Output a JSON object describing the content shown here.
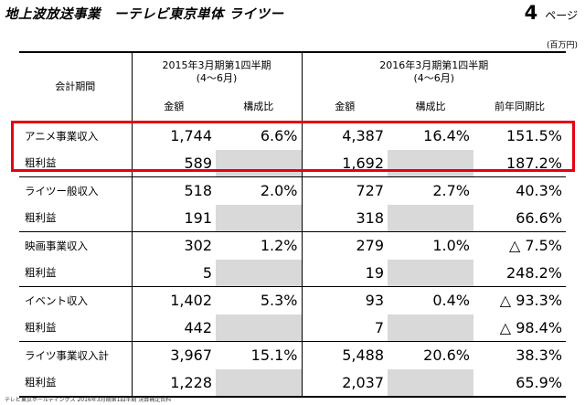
{
  "header": {
    "title": "地上波放送事業　ーテレビ東京単体 ライツー",
    "page_number": "4",
    "page_label": "ページ",
    "unit": "(百万円)"
  },
  "table": {
    "period_label": "会計期間",
    "period1": {
      "line1": "2015年3月期第1四半期",
      "line2": "(4〜6月)"
    },
    "period2": {
      "line1": "2016年3月期第1四半期",
      "line2": "(4〜6月)"
    },
    "col_amount": "金額",
    "col_ratio": "構成比",
    "col_yoy": "前年同期比",
    "rows": [
      {
        "label": "アニメ事業収入",
        "a1": "1,744",
        "r1": "6.6%",
        "a2": "4,387",
        "r2": "16.4%",
        "yoy": "151.5%"
      },
      {
        "label": "粗利益",
        "a1": "589",
        "r1": "",
        "a2": "1,692",
        "r2": "",
        "yoy": "187.2%"
      },
      {
        "label": "ライツー般収入",
        "a1": "518",
        "r1": "2.0%",
        "a2": "727",
        "r2": "2.7%",
        "yoy": "40.3%"
      },
      {
        "label": "粗利益",
        "a1": "191",
        "r1": "",
        "a2": "318",
        "r2": "",
        "yoy": "66.6%"
      },
      {
        "label": "映画事業収入",
        "a1": "302",
        "r1": "1.2%",
        "a2": "279",
        "r2": "1.0%",
        "yoy": "△ 7.5%"
      },
      {
        "label": "粗利益",
        "a1": "5",
        "r1": "",
        "a2": "19",
        "r2": "",
        "yoy": "248.2%"
      },
      {
        "label": "イベント収入",
        "a1": "1,402",
        "r1": "5.3%",
        "a2": "93",
        "r2": "0.4%",
        "yoy": "△ 93.3%"
      },
      {
        "label": "粗利益",
        "a1": "442",
        "r1": "",
        "a2": "7",
        "r2": "",
        "yoy": "△ 98.4%"
      },
      {
        "label": "ライツ事業収入計",
        "a1": "3,967",
        "r1": "15.1%",
        "a2": "5,488",
        "r2": "20.6%",
        "yoy": "38.3%"
      },
      {
        "label": "粗利益",
        "a1": "1,228",
        "r1": "",
        "a2": "2,037",
        "r2": "",
        "yoy": "65.9%"
      }
    ]
  },
  "footer": "テレビ東京ホールディングス 2016年3月期第1四半期 決算補足資料",
  "colors": {
    "highlight": "#e60012",
    "gray_cell": "#d9d9d9"
  }
}
